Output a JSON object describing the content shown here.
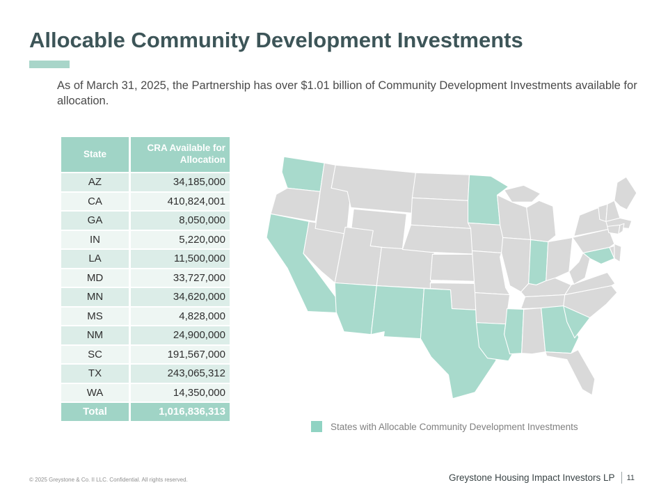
{
  "slide": {
    "title": "Allocable Community Development Investments",
    "subtitle": "As of March 31, 2025, the Partnership has over $1.01 billion of Community Development Investments available for allocation."
  },
  "table": {
    "columns": {
      "state": "State",
      "value": "CRA Available for Allocation"
    },
    "rows": [
      {
        "state": "AZ",
        "value": "34,185,000"
      },
      {
        "state": "CA",
        "value": "410,824,001"
      },
      {
        "state": "GA",
        "value": "8,050,000"
      },
      {
        "state": "IN",
        "value": "5,220,000"
      },
      {
        "state": "LA",
        "value": "11,500,000"
      },
      {
        "state": "MD",
        "value": "33,727,000"
      },
      {
        "state": "MN",
        "value": "34,620,000"
      },
      {
        "state": "MS",
        "value": "4,828,000"
      },
      {
        "state": "NM",
        "value": "24,900,000"
      },
      {
        "state": "SC",
        "value": "191,567,000"
      },
      {
        "state": "TX",
        "value": "243,065,312"
      },
      {
        "state": "WA",
        "value": "14,350,000"
      }
    ],
    "total_label": "Total",
    "total_value": "1,016,836,313"
  },
  "map": {
    "legend_label": "States with Allocable Community Development Investments",
    "highlighted_states": [
      "WA",
      "CA",
      "AZ",
      "NM",
      "TX",
      "LA",
      "MS",
      "MN",
      "IN",
      "GA",
      "SC",
      "MD"
    ],
    "highlight_color": "#a8dacc",
    "base_color": "#d9d9d9",
    "border_color": "#ffffff"
  },
  "colors": {
    "accent_teal": "#a0d4c6",
    "title_color": "#3d5558"
  },
  "footer": {
    "copyright": "© 2025 Greystone & Co. II LLC. Confidential. All rights reserved.",
    "company": "Greystone Housing Impact Investors LP",
    "page_number": "11"
  }
}
